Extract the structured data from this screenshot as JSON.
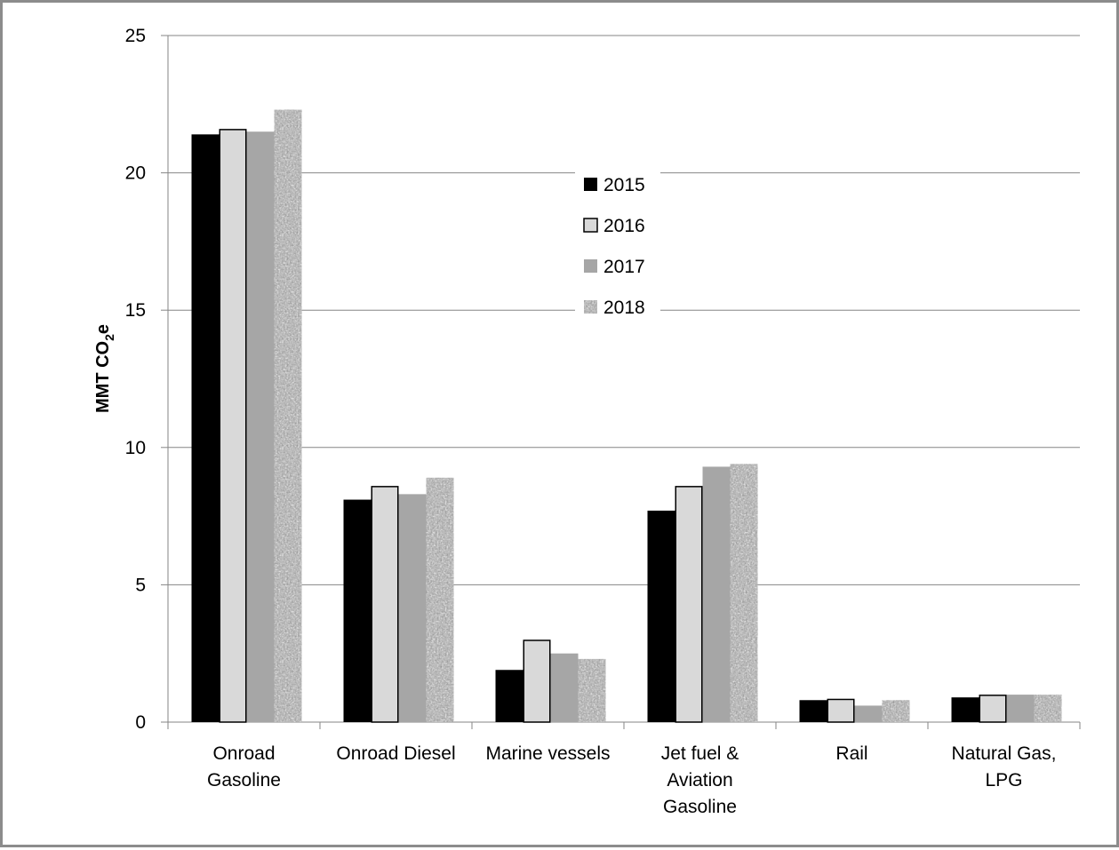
{
  "chart_data": {
    "type": "bar",
    "title": "",
    "xlabel": "",
    "ylabel": {
      "main": "MMT CO",
      "subscript": "2",
      "suffix": "e"
    },
    "ylim": [
      0,
      25
    ],
    "yticks": [
      0,
      5,
      10,
      15,
      20,
      25
    ],
    "grid": true,
    "legend_position": "center-top",
    "categories": [
      [
        "Onroad",
        "Gasoline"
      ],
      [
        "Onroad Diesel"
      ],
      [
        "Marine vessels"
      ],
      [
        "Jet fuel &",
        "Aviation",
        "Gasoline"
      ],
      [
        "Rail"
      ],
      [
        "Natural Gas,",
        "LPG"
      ]
    ],
    "series": [
      {
        "name": "2015",
        "color": "#000000",
        "pattern": "solid",
        "values": [
          21.4,
          8.1,
          1.9,
          7.7,
          0.8,
          0.9
        ]
      },
      {
        "name": "2016",
        "color": "#d9d9d9",
        "pattern": "outlined",
        "values": [
          21.6,
          8.6,
          3.0,
          8.6,
          0.85,
          1.0
        ]
      },
      {
        "name": "2017",
        "color": "#a6a6a6",
        "pattern": "solid",
        "values": [
          21.5,
          8.3,
          2.5,
          9.3,
          0.6,
          1.0
        ]
      },
      {
        "name": "2018",
        "color": "#b0b0b0",
        "pattern": "granite",
        "values": [
          22.3,
          8.9,
          2.3,
          9.4,
          0.8,
          1.0
        ]
      }
    ]
  }
}
